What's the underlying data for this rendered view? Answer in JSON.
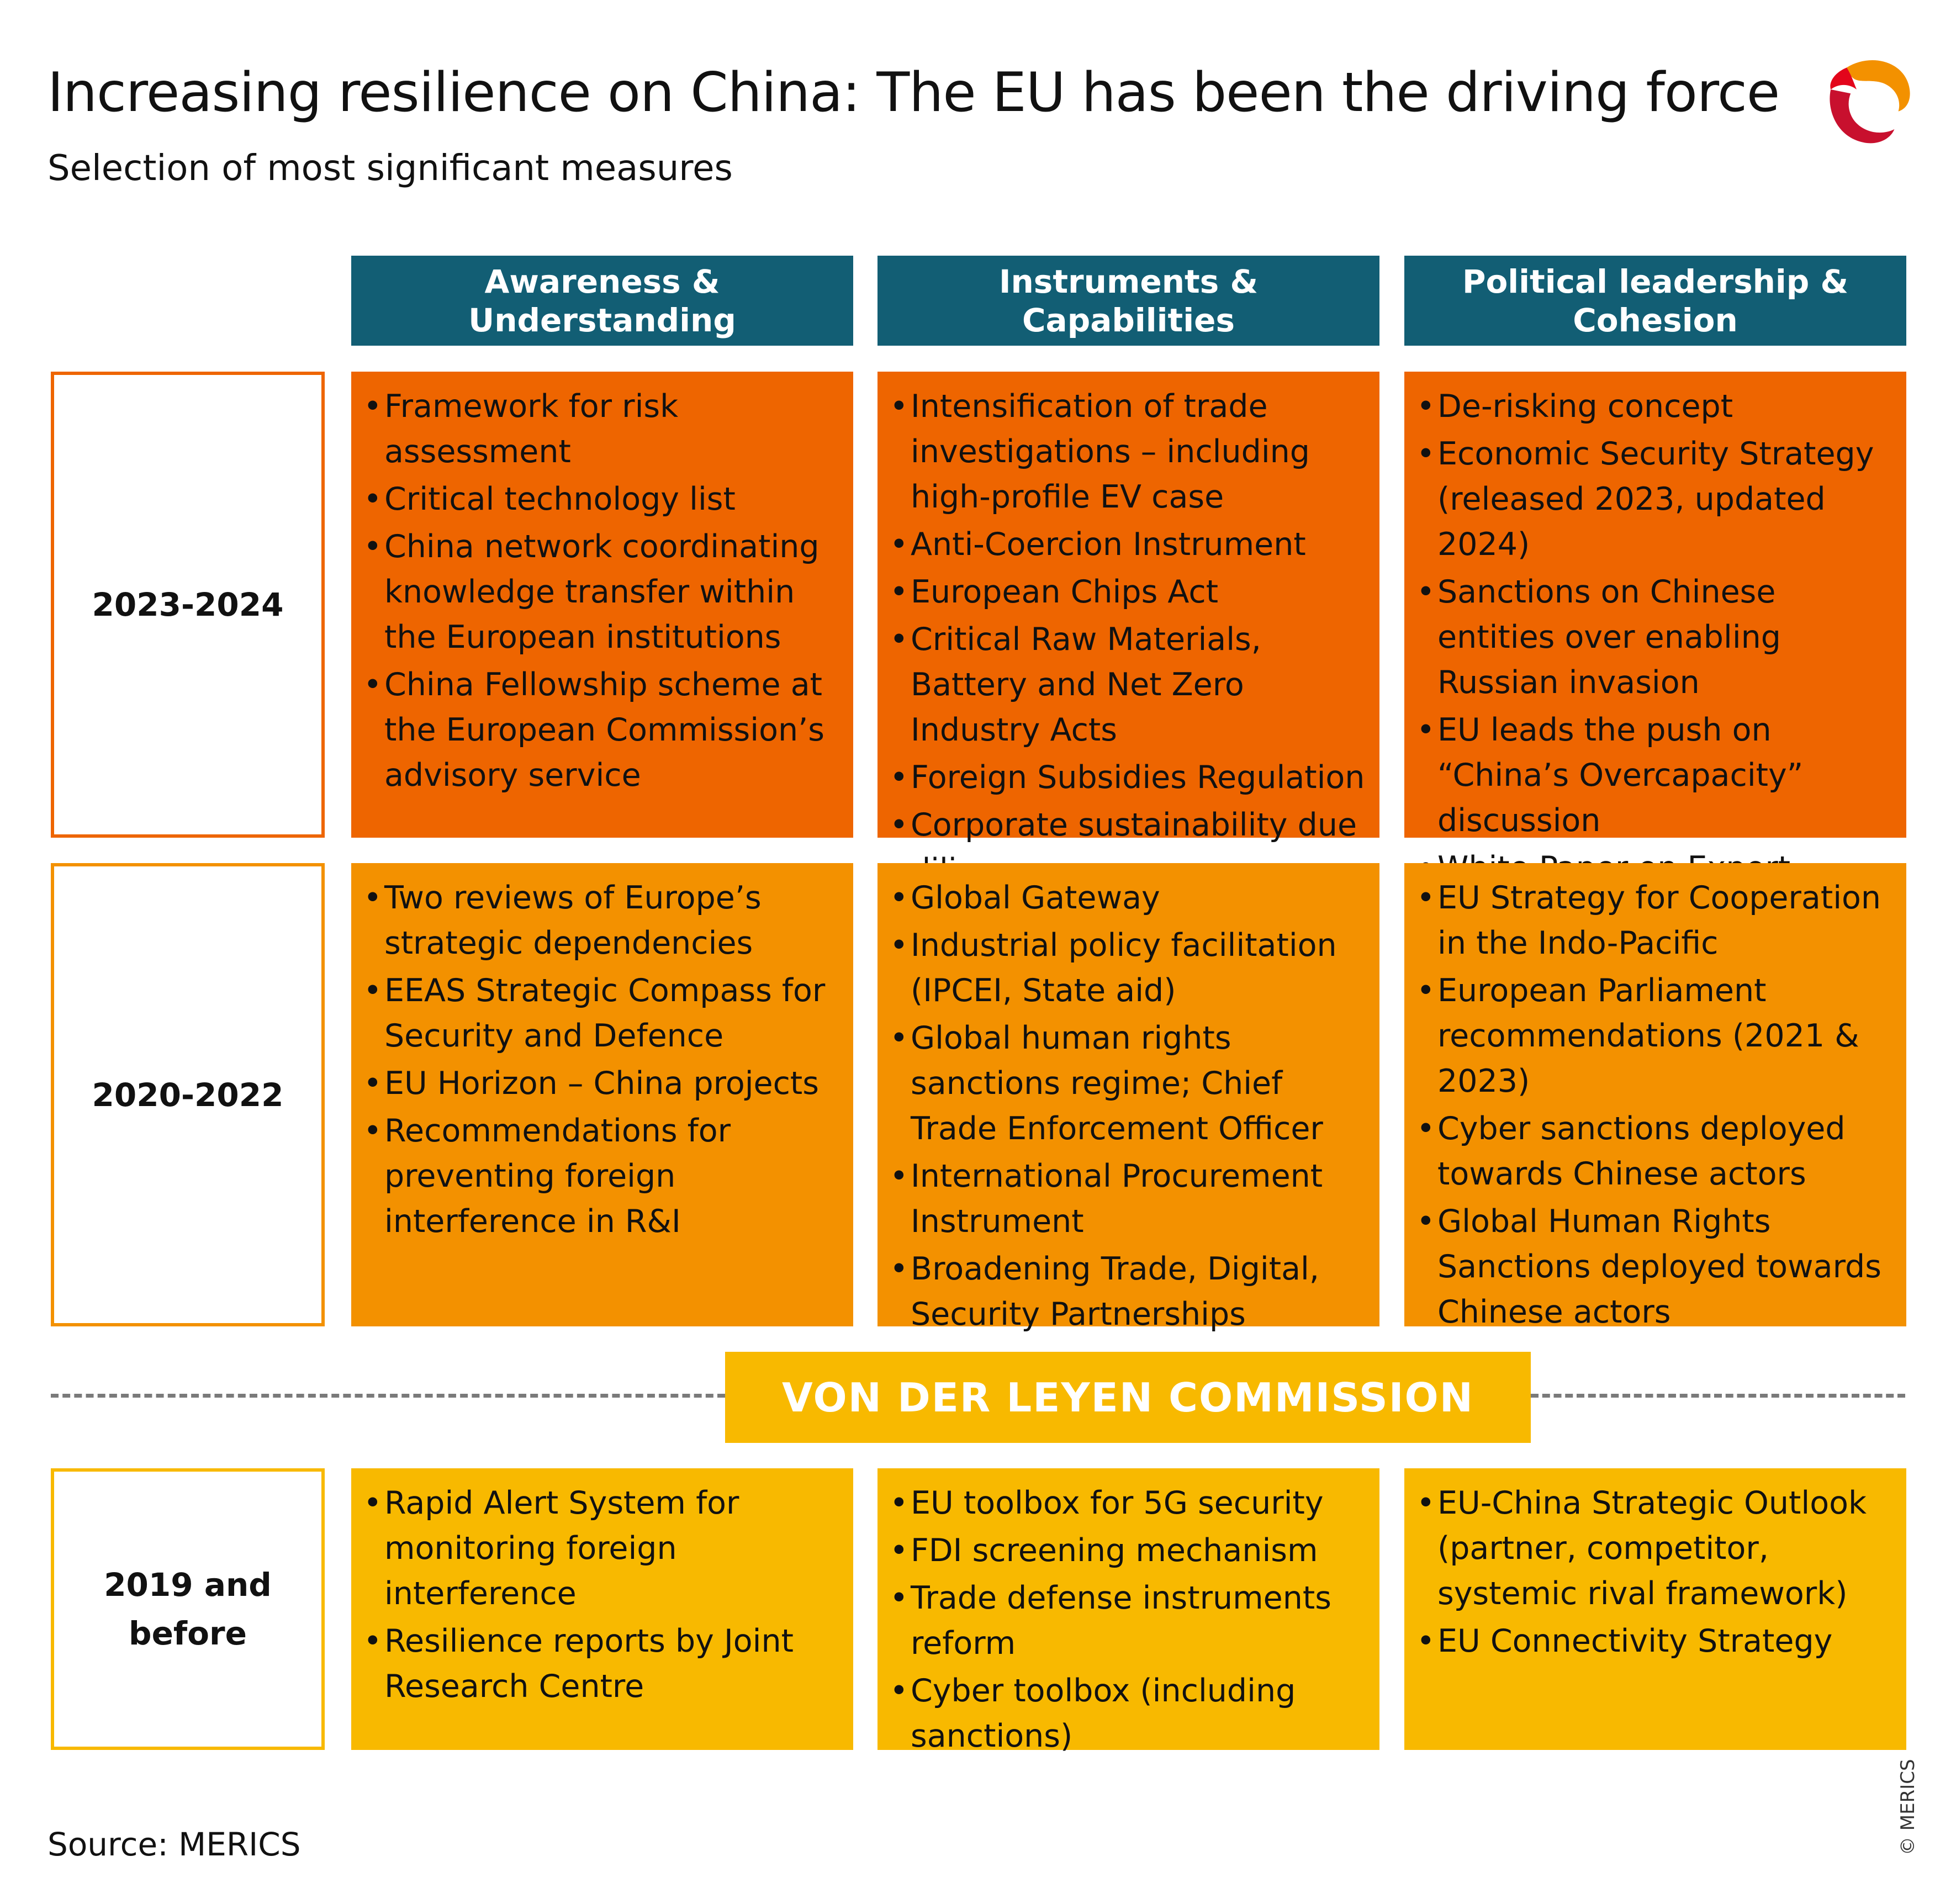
{
  "title": "Increasing resilience on China: The EU has been the driving force",
  "subtitle": "Selection of most significant measures",
  "columns": [
    "Awareness &\nUnderstanding",
    "Instruments &\nCapabilities",
    "Political leadership &\nCohesion"
  ],
  "rows": [
    {
      "period": "2023-2024",
      "cells": [
        [
          "Framework for risk assessment",
          "Critical technology list",
          "China network coordinating knowledge transfer within the European institutions",
          "China Fellowship scheme at the European Commission’s advisory service"
        ],
        [
          "Intensification of trade investigations – including high-profile EV case",
          "Anti-Coercion Instrument",
          "European Chips Act",
          "Critical Raw Materials, Battery and Net Zero Industry Acts",
          "Foreign Subsidies Regulation",
          "Corporate sustainability due diligence"
        ],
        [
          "De-risking concept",
          "Economic Security Strategy (released 2023, updated 2024)",
          "Sanctions on Chinese entities over enabling Russian invasion",
          "EU leads the push on “China’s Overcapacity” discussion",
          "White Paper on Export Controls and Outbound Investment Screening"
        ]
      ]
    },
    {
      "period": "2020-2022",
      "cells": [
        [
          "Two reviews of Europe’s strategic dependencies",
          "EEAS Strategic Compass for Security and Defence",
          "EU Horizon – China projects",
          "Recommendations for preventing foreign interference in R&I"
        ],
        [
          "Global Gateway",
          "Industrial policy facilitation (IPCEI, State aid)",
          "Global human rights sanctions regime; Chief Trade Enforcement Officer",
          "International Procurement Instrument",
          "Broadening Trade, Digital, Security Partnerships"
        ],
        [
          "EU Strategy for Cooperation in the Indo-Pacific",
          "European Parliament recommendations (2021 & 2023)",
          "Cyber sanctions deployed towards Chinese actors",
          "Global Human Rights Sanctions deployed towards Chinese actors"
        ]
      ]
    },
    {
      "period": "2019 and\nbefore",
      "cells": [
        [
          "Rapid Alert System for monitoring foreign interference",
          "Resilience reports by Joint Research Centre"
        ],
        [
          "EU toolbox for 5G security",
          "FDI screening mechanism",
          "Trade defense instruments reform",
          "Cyber toolbox (including sanctions)"
        ],
        [
          "EU-China Strategic Outlook (partner, competitor, systemic rival framework)",
          "EU Connectivity Strategy"
        ]
      ]
    }
  ],
  "divider_label": "VON DER LEYEN COMMISSION",
  "source": "Source: MERICS",
  "copyright": "© MERICS",
  "logo_icon": "merics-logo-icon",
  "colors": {
    "header": "#125e74",
    "row_2023_2024": "#ee6500",
    "row_2020_2022": "#f39100",
    "row_2019_before": "#f8b900"
  }
}
